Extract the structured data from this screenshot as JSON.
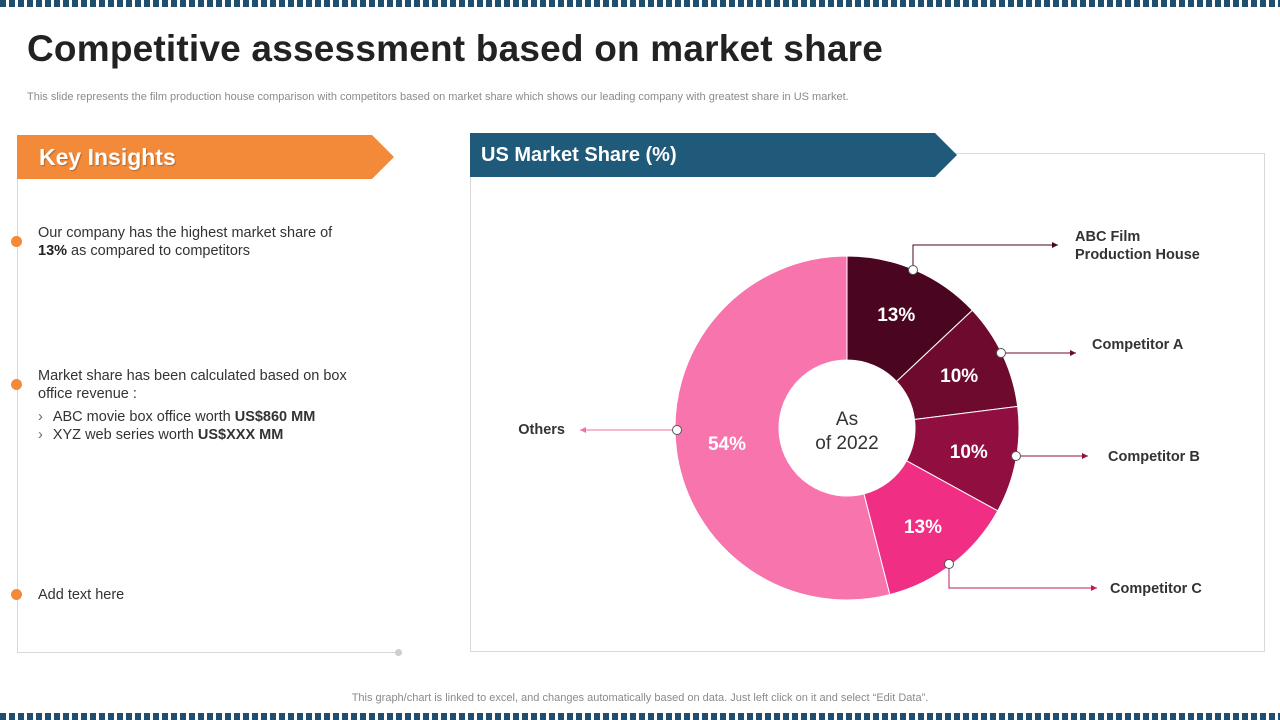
{
  "slide": {
    "title": "Competitive assessment based on market share",
    "subtitle": "This slide represents the film production house comparison with competitors based on market share which shows our leading company with greatest share in US market.",
    "footer": "This graph/chart is linked to excel,  and changes automatically based on data. Just left click on it and select “Edit Data”."
  },
  "colors": {
    "accent_orange": "#f28a3a",
    "banner_blue": "#1f5a7a",
    "border_blue": "#1f4e6e"
  },
  "insights": {
    "heading": "Key Insights",
    "item1": {
      "before": "Our company has the highest market share of ",
      "bold": "13%",
      "after": " as compared to competitors"
    },
    "item2": {
      "text": "Market share has been calculated based on box office revenue :",
      "sub1": {
        "chevron": "›",
        "label": "ABC movie box office worth ",
        "value": "US$860 MM"
      },
      "sub2": {
        "chevron": "›",
        "label": "XYZ  web series worth ",
        "value": "US$XXX MM"
      }
    },
    "item3": "Add text here"
  },
  "chart_data": {
    "type": "pie",
    "title": "US Market Share (%)",
    "center_label": [
      "As",
      "of 2022"
    ],
    "categories": [
      "ABC Film Production House",
      "Competitor A",
      "Competitor B",
      "Competitor C",
      "Others"
    ],
    "values": [
      13,
      10,
      10,
      13,
      54
    ],
    "value_labels": [
      "13%",
      "10%",
      "10%",
      "13%",
      "54%"
    ],
    "callouts": [
      [
        "ABC Film",
        "Production House"
      ],
      [
        "Competitor A"
      ],
      [
        "Competitor B"
      ],
      [
        "Competitor C"
      ],
      [
        "Others"
      ]
    ],
    "colors": [
      "#4a0520",
      "#6e0a2e",
      "#900f40",
      "#f02e84",
      "#f774ad"
    ]
  }
}
